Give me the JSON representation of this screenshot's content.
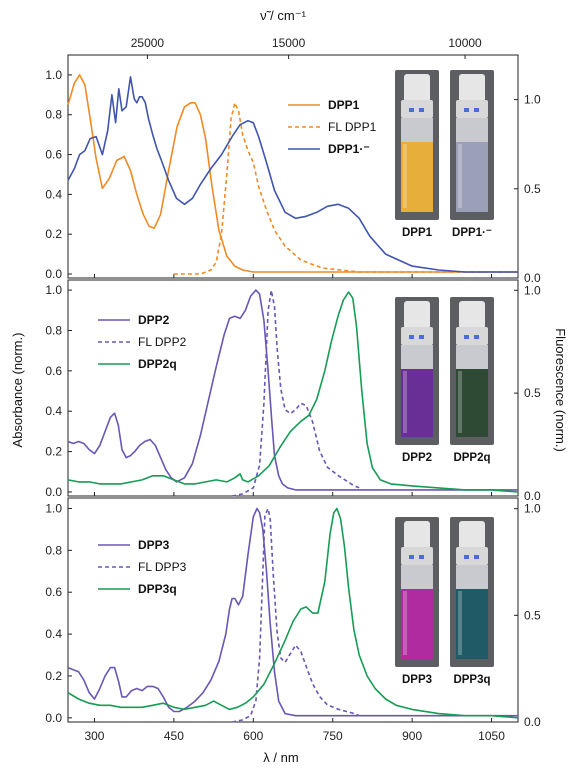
{
  "figure": {
    "top_axis_label": "ν̃ / cm⁻¹",
    "top_ticks": [
      "25000",
      "15000",
      "10000"
    ],
    "bottom_axis_label": "λ / nm",
    "bottom_ticks": [
      "300",
      "450",
      "600",
      "750",
      "900",
      "1050"
    ],
    "left_axis_label": "Absorbance (norm.)",
    "right_axis_label": "Fluorescence (norm.)",
    "left_ticks": [
      "0.0",
      "0.2",
      "0.4",
      "0.6",
      "0.8",
      "1.0"
    ],
    "right_ticks": [
      "0.0",
      "0.5",
      "1.0"
    ],
    "colors": {
      "orange": "#f08a24",
      "blue": "#3f55b0",
      "purple": "#6a56b5",
      "green": "#169c55"
    }
  },
  "panels": [
    {
      "legend": [
        {
          "label": "DPP1",
          "style": "solid",
          "color": "#f08a24",
          "bold": true
        },
        {
          "label": "FL DPP1",
          "style": "dashed",
          "color": "#f08a24",
          "bold": false
        },
        {
          "label": "DPP1·⁻",
          "style": "solid",
          "color": "#3f55b0",
          "bold": true
        }
      ],
      "vials": [
        {
          "label": "DPP1",
          "liquid": "#e8ae3a"
        },
        {
          "label": "DPP1·⁻",
          "liquid": "#9aa0b8"
        }
      ]
    },
    {
      "legend": [
        {
          "label": "DPP2",
          "style": "solid",
          "color": "#6a56b5",
          "bold": true
        },
        {
          "label": "FL DPP2",
          "style": "dashed",
          "color": "#6a56b5",
          "bold": false
        },
        {
          "label": "DPP2q",
          "style": "solid",
          "color": "#169c55",
          "bold": true
        }
      ],
      "vials": [
        {
          "label": "DPP2",
          "liquid": "#6a2f96"
        },
        {
          "label": "DPP2q",
          "liquid": "#2e4a34"
        }
      ]
    },
    {
      "legend": [
        {
          "label": "DPP3",
          "style": "solid",
          "color": "#6a56b5",
          "bold": true
        },
        {
          "label": "FL DPP3",
          "style": "dashed",
          "color": "#6a56b5",
          "bold": false
        },
        {
          "label": "DPP3q",
          "style": "solid",
          "color": "#169c55",
          "bold": true
        }
      ],
      "vials": [
        {
          "label": "DPP3",
          "liquid": "#b02aa0"
        },
        {
          "label": "DPP3q",
          "liquid": "#1f5a66"
        }
      ]
    }
  ],
  "chart_data": [
    {
      "type": "line",
      "xlim": [
        250,
        1100
      ],
      "ylim_left": [
        -0.02,
        1.1
      ],
      "ylim_right": [
        0,
        1.25
      ],
      "series": [
        {
          "name": "DPP1",
          "axis": "left",
          "color": "#f08a24",
          "dash": false,
          "x": [
            250,
            262,
            272,
            282,
            292,
            303,
            315,
            328,
            342,
            356,
            368,
            380,
            392,
            403,
            413,
            425,
            440,
            456,
            470,
            482,
            490,
            500,
            510,
            522,
            535,
            550,
            565,
            580,
            600,
            640,
            700,
            800,
            900,
            1000,
            1100
          ],
          "y": [
            0.85,
            0.96,
            1.0,
            0.95,
            0.78,
            0.58,
            0.43,
            0.48,
            0.57,
            0.59,
            0.52,
            0.4,
            0.3,
            0.24,
            0.23,
            0.3,
            0.52,
            0.74,
            0.84,
            0.86,
            0.86,
            0.8,
            0.68,
            0.44,
            0.22,
            0.09,
            0.04,
            0.02,
            0.01,
            0.01,
            0.01,
            0.01,
            0.01,
            0.01,
            0.01
          ]
        },
        {
          "name": "FL DPP1",
          "axis": "left",
          "color": "#f08a24",
          "dash": true,
          "x": [
            450,
            500,
            520,
            530,
            540,
            550,
            558,
            565,
            572,
            580,
            590,
            600,
            610,
            625,
            640,
            660,
            690,
            730,
            800,
            1100
          ],
          "y": [
            0.0,
            0.0,
            0.02,
            0.06,
            0.2,
            0.5,
            0.78,
            0.86,
            0.82,
            0.7,
            0.62,
            0.56,
            0.44,
            0.32,
            0.22,
            0.14,
            0.07,
            0.03,
            0.01,
            0.01
          ]
        },
        {
          "name": "DPP1·⁻",
          "axis": "left",
          "color": "#3f55b0",
          "dash": false,
          "x": [
            250,
            262,
            272,
            282,
            292,
            303,
            315,
            325,
            333,
            340,
            346,
            352,
            360,
            368,
            375,
            380,
            385,
            390,
            396,
            402,
            410,
            418,
            428,
            440,
            455,
            470,
            485,
            500,
            520,
            540,
            560,
            575,
            590,
            600,
            610,
            625,
            640,
            660,
            680,
            700,
            720,
            740,
            760,
            780,
            800,
            820,
            850,
            900,
            950,
            1000,
            1100
          ],
          "y": [
            0.47,
            0.53,
            0.6,
            0.62,
            0.68,
            0.69,
            0.6,
            0.72,
            0.9,
            0.76,
            0.93,
            0.82,
            0.84,
            0.99,
            0.88,
            0.86,
            0.89,
            0.89,
            0.86,
            0.78,
            0.7,
            0.63,
            0.56,
            0.47,
            0.38,
            0.35,
            0.38,
            0.45,
            0.53,
            0.6,
            0.69,
            0.75,
            0.77,
            0.76,
            0.69,
            0.56,
            0.42,
            0.31,
            0.28,
            0.29,
            0.31,
            0.34,
            0.35,
            0.33,
            0.28,
            0.19,
            0.1,
            0.04,
            0.02,
            0.01,
            0.01
          ]
        }
      ]
    },
    {
      "type": "line",
      "xlim": [
        250,
        1100
      ],
      "ylim_left": [
        -0.02,
        1.05
      ],
      "ylim_right": [
        0,
        1.05
      ],
      "series": [
        {
          "name": "DPP2",
          "axis": "left",
          "color": "#6a56b5",
          "dash": false,
          "x": [
            250,
            260,
            270,
            280,
            290,
            300,
            310,
            320,
            330,
            338,
            345,
            352,
            360,
            368,
            376,
            385,
            395,
            405,
            415,
            425,
            435,
            445,
            455,
            470,
            485,
            500,
            515,
            530,
            545,
            555,
            565,
            575,
            585,
            595,
            605,
            612,
            620,
            628,
            635,
            640,
            648,
            655,
            665,
            680,
            700,
            800,
            900,
            1100
          ],
          "y": [
            0.25,
            0.24,
            0.25,
            0.24,
            0.21,
            0.19,
            0.23,
            0.3,
            0.37,
            0.39,
            0.33,
            0.21,
            0.17,
            0.18,
            0.2,
            0.23,
            0.25,
            0.26,
            0.23,
            0.17,
            0.11,
            0.07,
            0.05,
            0.07,
            0.14,
            0.28,
            0.45,
            0.62,
            0.78,
            0.86,
            0.87,
            0.86,
            0.9,
            0.97,
            1.0,
            0.98,
            0.85,
            0.6,
            0.35,
            0.18,
            0.08,
            0.04,
            0.02,
            0.01,
            0.01,
            0.01,
            0.01,
            0.01
          ]
        },
        {
          "name": "FL DPP2",
          "axis": "right",
          "color": "#6a56b5",
          "dash": true,
          "x": [
            560,
            580,
            600,
            612,
            620,
            628,
            634,
            640,
            645,
            652,
            660,
            670,
            680,
            690,
            700,
            712,
            725,
            740,
            760,
            790,
            800
          ],
          "y": [
            0.0,
            0.01,
            0.04,
            0.15,
            0.45,
            0.9,
            1.0,
            0.92,
            0.72,
            0.52,
            0.42,
            0.4,
            0.42,
            0.45,
            0.44,
            0.36,
            0.22,
            0.14,
            0.1,
            0.05,
            0.04
          ]
        },
        {
          "name": "DPP2q",
          "axis": "left",
          "color": "#169c55",
          "dash": false,
          "x": [
            250,
            270,
            290,
            310,
            330,
            350,
            370,
            390,
            410,
            430,
            450,
            470,
            490,
            510,
            530,
            550,
            565,
            575,
            580,
            590,
            610,
            630,
            650,
            670,
            690,
            705,
            720,
            735,
            748,
            760,
            770,
            780,
            788,
            795,
            805,
            815,
            825,
            840,
            860,
            900,
            950,
            1000,
            1050,
            1100
          ],
          "y": [
            0.06,
            0.05,
            0.05,
            0.04,
            0.04,
            0.04,
            0.05,
            0.06,
            0.08,
            0.08,
            0.06,
            0.04,
            0.04,
            0.05,
            0.06,
            0.05,
            0.07,
            0.09,
            0.06,
            0.05,
            0.08,
            0.13,
            0.22,
            0.3,
            0.35,
            0.38,
            0.46,
            0.6,
            0.75,
            0.87,
            0.95,
            0.99,
            0.96,
            0.82,
            0.5,
            0.24,
            0.12,
            0.06,
            0.04,
            0.03,
            0.02,
            0.01,
            0.01,
            0.0
          ]
        }
      ]
    },
    {
      "type": "line",
      "xlim": [
        250,
        1100
      ],
      "ylim_left": [
        -0.02,
        1.05
      ],
      "ylim_right": [
        0,
        1.05
      ],
      "series": [
        {
          "name": "DPP3",
          "axis": "left",
          "color": "#6a56b5",
          "dash": false,
          "x": [
            250,
            260,
            270,
            280,
            290,
            300,
            310,
            320,
            330,
            338,
            346,
            352,
            360,
            370,
            380,
            390,
            400,
            410,
            420,
            430,
            440,
            450,
            460,
            475,
            490,
            505,
            520,
            535,
            548,
            555,
            560,
            565,
            572,
            580,
            590,
            600,
            607,
            612,
            618,
            625,
            632,
            640,
            648,
            660,
            680,
            700,
            800,
            1100
          ],
          "y": [
            0.24,
            0.23,
            0.22,
            0.18,
            0.12,
            0.09,
            0.14,
            0.2,
            0.24,
            0.24,
            0.17,
            0.1,
            0.1,
            0.13,
            0.14,
            0.13,
            0.15,
            0.15,
            0.14,
            0.1,
            0.05,
            0.03,
            0.03,
            0.05,
            0.08,
            0.12,
            0.18,
            0.27,
            0.4,
            0.52,
            0.57,
            0.57,
            0.54,
            0.58,
            0.78,
            0.96,
            1.0,
            0.98,
            0.9,
            0.7,
            0.45,
            0.22,
            0.08,
            0.02,
            0.01,
            0.01,
            0.01,
            0.01
          ]
        },
        {
          "name": "FL DPP3",
          "axis": "right",
          "color": "#6a56b5",
          "dash": true,
          "x": [
            560,
            580,
            595,
            605,
            612,
            618,
            622,
            628,
            632,
            638,
            645,
            652,
            660,
            670,
            680,
            690,
            700,
            712,
            725,
            740,
            760,
            790,
            800
          ],
          "y": [
            0.0,
            0.01,
            0.03,
            0.1,
            0.3,
            0.7,
            0.97,
            1.0,
            0.95,
            0.68,
            0.42,
            0.3,
            0.28,
            0.32,
            0.36,
            0.33,
            0.26,
            0.18,
            0.12,
            0.08,
            0.06,
            0.04,
            0.03
          ]
        },
        {
          "name": "DPP3q",
          "axis": "left",
          "color": "#169c55",
          "dash": false,
          "x": [
            250,
            270,
            290,
            310,
            330,
            350,
            370,
            390,
            410,
            430,
            450,
            470,
            490,
            510,
            525,
            540,
            555,
            570,
            585,
            600,
            620,
            640,
            660,
            675,
            690,
            700,
            712,
            722,
            735,
            745,
            752,
            758,
            765,
            772,
            780,
            790,
            800,
            815,
            830,
            850,
            870,
            900,
            950,
            1000,
            1050,
            1100
          ],
          "y": [
            0.12,
            0.09,
            0.07,
            0.06,
            0.06,
            0.05,
            0.05,
            0.05,
            0.06,
            0.07,
            0.05,
            0.04,
            0.05,
            0.06,
            0.08,
            0.06,
            0.04,
            0.05,
            0.07,
            0.1,
            0.16,
            0.26,
            0.37,
            0.46,
            0.52,
            0.53,
            0.5,
            0.5,
            0.65,
            0.88,
            0.98,
            1.0,
            0.95,
            0.82,
            0.62,
            0.42,
            0.3,
            0.2,
            0.14,
            0.09,
            0.06,
            0.04,
            0.02,
            0.01,
            0.01,
            0.0
          ]
        }
      ]
    }
  ]
}
